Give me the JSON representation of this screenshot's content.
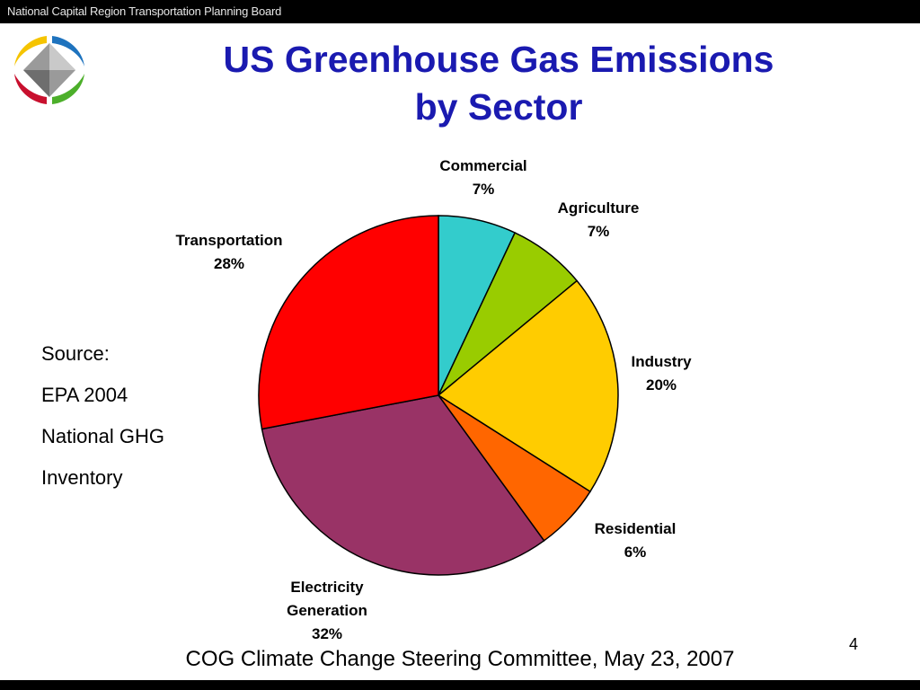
{
  "header": {
    "org_name": "National Capital Region Transportation Planning Board"
  },
  "logo": {
    "icon": "organization-logo",
    "colors": [
      "#f5c400",
      "#1e73be",
      "#c8102e",
      "#4caf2a"
    ]
  },
  "title": {
    "line1": "US Greenhouse Gas Emissions",
    "line2": "by Sector"
  },
  "source": {
    "lines": [
      "Source:",
      "EPA 2004",
      "National GHG",
      "Inventory"
    ]
  },
  "chart_data": {
    "type": "pie",
    "title": "US Greenhouse Gas Emissions by Sector",
    "start": "12 o'clock, clockwise",
    "slices": [
      {
        "label": "Commercial",
        "value": 7,
        "value_label": "7%",
        "color": "#33cccc"
      },
      {
        "label": "Agriculture",
        "value": 7,
        "value_label": "7%",
        "color": "#99cc00"
      },
      {
        "label": "Industry",
        "value": 20,
        "value_label": "20%",
        "color": "#ffcc00"
      },
      {
        "label": "Residential",
        "value": 6,
        "value_label": "6%",
        "color": "#ff6600"
      },
      {
        "label": "Electricity Generation",
        "label_lines": [
          "Electricity",
          "Generation"
        ],
        "value": 32,
        "value_label": "32%",
        "color": "#993366"
      },
      {
        "label": "Transportation",
        "value": 28,
        "value_label": "28%",
        "color": "#ff0000"
      }
    ]
  },
  "footer": {
    "text": "COG Climate Change Steering Committee, May 23, 2007",
    "page_number": "4"
  }
}
